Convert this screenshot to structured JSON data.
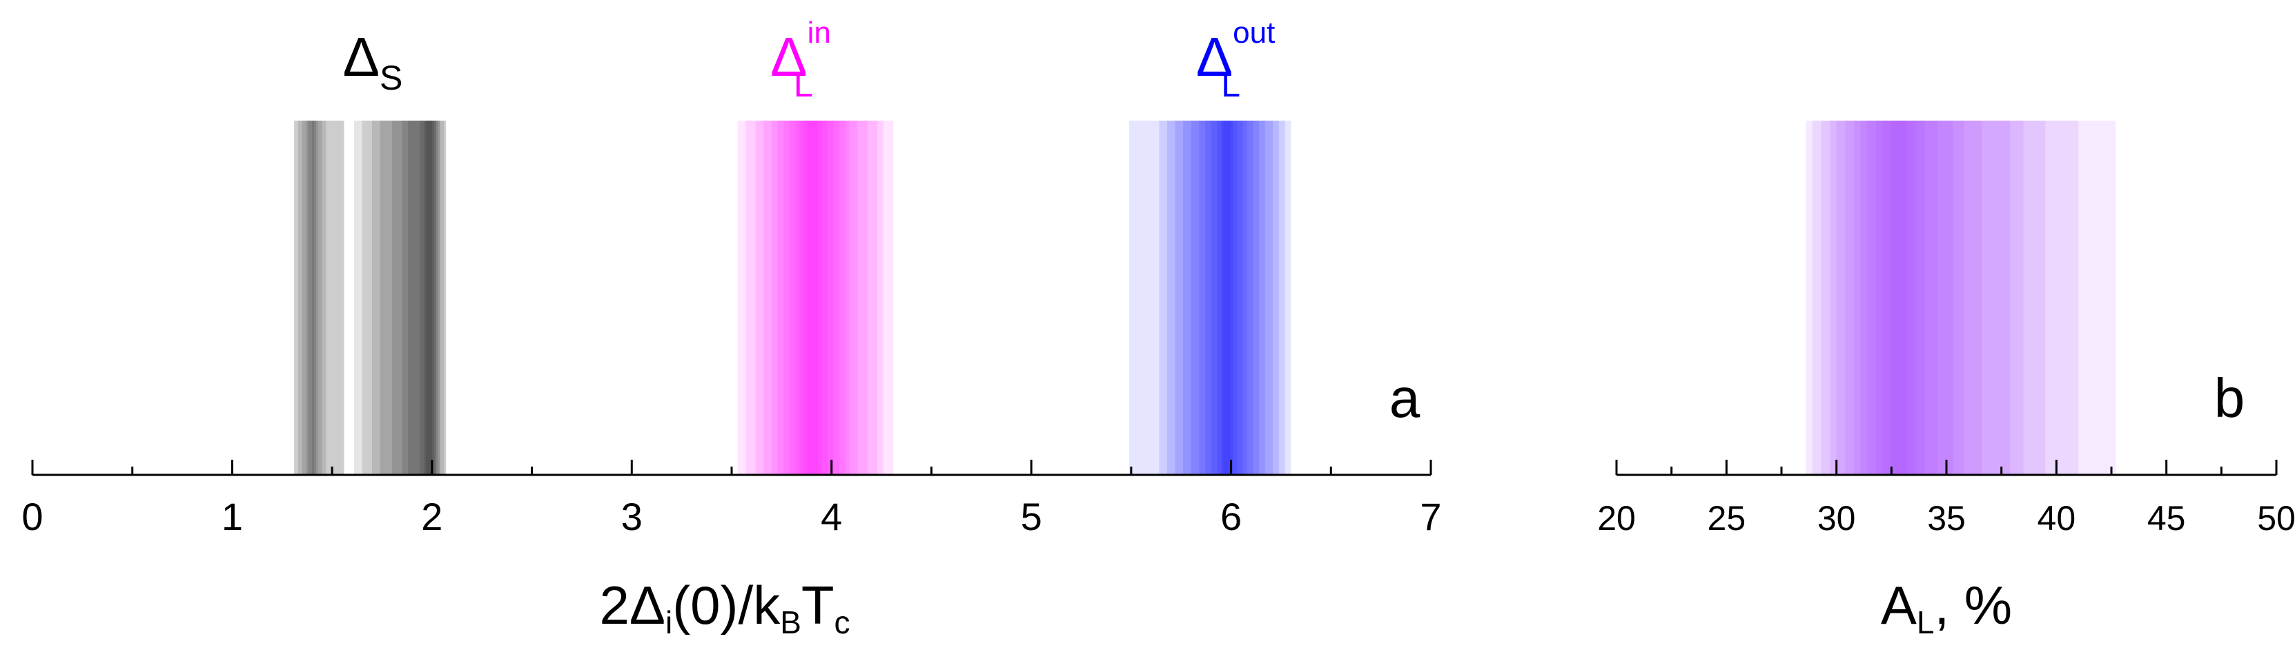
{
  "chart_data": [
    {
      "type": "bar",
      "panel_label": "a",
      "xlabel": {
        "main": "2Δ",
        "sub1": "i",
        "mid": "(0)/k",
        "sub2": "B",
        "mid2": "T",
        "sub3": "c"
      },
      "xlim": [
        0,
        7
      ],
      "major_ticks": [
        0,
        1,
        2,
        3,
        4,
        5,
        6,
        7
      ],
      "minor_ticks": [
        0.5,
        1.5,
        2.5,
        3.5,
        4.5,
        5.5,
        6.5
      ],
      "tick_labels": [
        "0",
        "1",
        "2",
        "3",
        "4",
        "5",
        "6",
        "7"
      ],
      "series": [
        {
          "name": "ΔS",
          "label_main": "Δ",
          "label_sub": "S",
          "label_sup": "",
          "color": "#000000",
          "intervals": [
            [
              1.31,
              1.47
            ],
            [
              1.33,
              1.45
            ],
            [
              1.35,
              1.43
            ],
            [
              1.37,
              1.42
            ],
            [
              1.38,
              1.41
            ],
            [
              1.31,
              1.56
            ],
            [
              1.4,
              1.56
            ],
            [
              1.61,
              2.07
            ],
            [
              1.65,
              2.07
            ],
            [
              1.7,
              2.06
            ],
            [
              1.74,
              2.04
            ],
            [
              1.8,
              2.04
            ],
            [
              1.85,
              2.03
            ],
            [
              1.88,
              2.02
            ],
            [
              1.94,
              2.02
            ],
            [
              1.96,
              2.01
            ],
            [
              1.97,
              2.0
            ]
          ]
        },
        {
          "name": "ΔL in",
          "label_main": "Δ",
          "label_sub": "L",
          "label_sup": "in",
          "color": "#ff00ff",
          "intervals": [
            [
              3.53,
              4.31
            ],
            [
              3.57,
              4.26
            ],
            [
              3.62,
              4.23
            ],
            [
              3.66,
              4.18
            ],
            [
              3.7,
              4.13
            ],
            [
              3.73,
              4.09
            ],
            [
              3.76,
              4.07
            ],
            [
              3.79,
              4.04
            ],
            [
              3.82,
              4.01
            ],
            [
              3.84,
              3.98
            ],
            [
              3.86,
              3.95
            ],
            [
              3.88,
              3.93
            ]
          ]
        },
        {
          "name": "ΔL out",
          "label_main": "Δ",
          "label_sub": "L",
          "label_sup": "out",
          "color": "#0000ff",
          "intervals": [
            [
              5.49,
              6.3
            ],
            [
              5.64,
              6.27
            ],
            [
              5.68,
              6.24
            ],
            [
              5.72,
              6.21
            ],
            [
              5.76,
              6.17
            ],
            [
              5.8,
              6.14
            ],
            [
              5.84,
              6.11
            ],
            [
              5.87,
              6.08
            ],
            [
              5.9,
              6.06
            ],
            [
              5.93,
              6.03
            ],
            [
              5.95,
              6.01
            ],
            [
              5.96,
              6.0
            ]
          ]
        }
      ]
    },
    {
      "type": "bar",
      "panel_label": "b",
      "xlabel": {
        "main": "A",
        "sub": "L",
        "after": ", %"
      },
      "xlim": [
        20,
        50
      ],
      "major_ticks": [
        20,
        25,
        30,
        35,
        40,
        45,
        50
      ],
      "minor_ticks": [
        22.5,
        27.5,
        32.5,
        37.5,
        42.5,
        47.5
      ],
      "tick_labels": [
        "20",
        "25",
        "30",
        "35",
        "40",
        "45",
        "50"
      ],
      "series": [
        {
          "name": "AL",
          "color": "#9933ff",
          "intervals": [
            [
              28.6,
              42.7
            ],
            [
              28.9,
              41.0
            ],
            [
              29.3,
              39.5
            ],
            [
              29.7,
              38.5
            ],
            [
              30.0,
              37.9
            ],
            [
              30.4,
              36.6
            ],
            [
              30.8,
              35.8
            ],
            [
              31.1,
              35.3
            ],
            [
              31.4,
              34.6
            ],
            [
              31.8,
              34.0
            ],
            [
              32.1,
              33.6
            ],
            [
              32.5,
              33.2
            ]
          ]
        }
      ]
    }
  ]
}
